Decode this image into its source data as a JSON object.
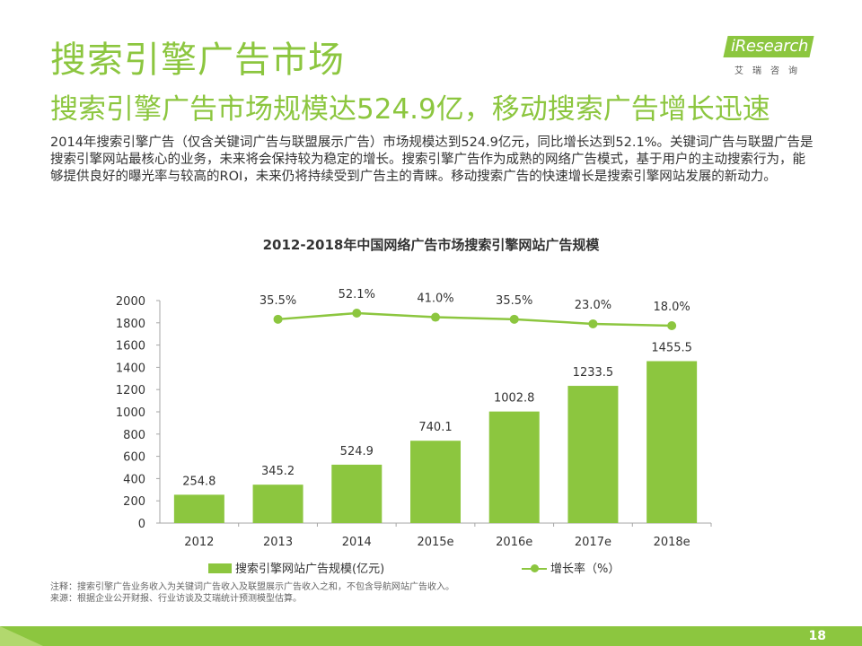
{
  "header": {
    "title": "搜索引擎广告市场",
    "subtitle": "搜索引擎广告市场规模达524.9亿，移动搜索广告增长迅速",
    "intro": "2014年搜索引擎广告（仅含关键词广告与联盟展示广告）市场规模达到524.9亿元，同比增长达到52.1%。关键词广告与联盟广告是搜索引擎网站最核心的业务，未来将会保持较为稳定的增长。搜索引擎广告作为成熟的网络广告模式，基于用户的主动搜索行为，能够提供良好的曝光率与较高的ROI，未来仍将持续受到广告主的青睐。移动搜索广告的快速增长是搜索引擎网站发展的新动力。"
  },
  "logo": {
    "name": "iResearch",
    "chinese": "艾瑞咨询"
  },
  "chart_data": {
    "type": "bar",
    "title": "2012-2018年中国网络广告市场搜索引擎网站广告规模",
    "categories": [
      "2012",
      "2013",
      "2014",
      "2015e",
      "2016e",
      "2017e",
      "2018e"
    ],
    "series": [
      {
        "name": "搜索引擎网站广告规模(亿元)",
        "type": "bar",
        "axis": "left",
        "values": [
          254.8,
          345.2,
          524.9,
          740.1,
          1002.8,
          1233.5,
          1455.5
        ],
        "labels": [
          "254.8",
          "345.2",
          "524.9",
          "740.1",
          "1002.8",
          "1233.5",
          "1455.5"
        ],
        "color": "#8cc63f"
      },
      {
        "name": "增长率（%）",
        "type": "line",
        "axis": "right-hidden",
        "values": [
          null,
          35.5,
          52.1,
          41.0,
          35.5,
          23.0,
          18.0
        ],
        "labels": [
          "",
          "35.5%",
          "52.1%",
          "41.0%",
          "35.5%",
          "23.0%",
          "18.0%"
        ],
        "color": "#8cc63f"
      }
    ],
    "yticks": [
      "0",
      "200",
      "400",
      "600",
      "800",
      "1000",
      "1200",
      "1400",
      "1600",
      "1800",
      "2000"
    ],
    "ylim": [
      0,
      2000
    ],
    "grid": false,
    "legend": "bottom"
  },
  "notes": {
    "note": "注释：搜索引擎广告业务收入为关键词广告收入及联盟展示广告收入之和，不包含导航网站广告收入。",
    "source": "来源：根据企业公开财报、行业访谈及艾瑞统计预测模型估算。"
  },
  "footer": {
    "page_number": "18"
  }
}
